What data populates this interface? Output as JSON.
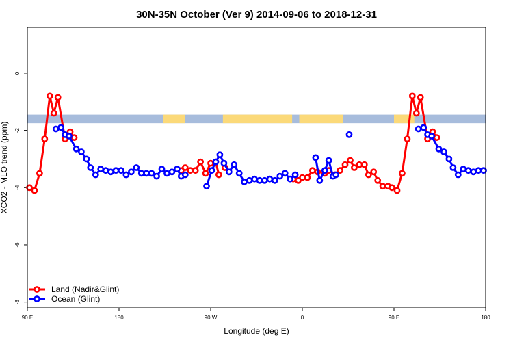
{
  "chart_data": {
    "type": "line",
    "title": "30N-35N October (Ver 9)   2014-09-06 to 2018-12-31",
    "xlabel": "Longitude (deg E)",
    "ylabel": "XCO2 - MLO trend (ppm)",
    "xlim": [
      90,
      540
    ],
    "ylim": [
      -8.2,
      1.6
    ],
    "x_ticks": [
      {
        "value": 90,
        "label": "90 E"
      },
      {
        "value": 180,
        "label": "180"
      },
      {
        "value": 270,
        "label": "90 W"
      },
      {
        "value": 360,
        "label": "0"
      },
      {
        "value": 450,
        "label": "90 E"
      },
      {
        "value": 540,
        "label": "180"
      }
    ],
    "y_ticks": [
      {
        "value": 0,
        "label": "0"
      },
      {
        "value": -2,
        "label": "-2"
      },
      {
        "value": -4,
        "label": "-4"
      },
      {
        "value": -6,
        "label": "-6"
      },
      {
        "value": -8,
        "label": "-8"
      }
    ],
    "land_mask_band": {
      "y_range": [
        -1.75,
        -1.45
      ],
      "ocean_color": "#a7bcdc",
      "land_color": "#fbd979",
      "land_segments": [
        [
          223,
          245
        ],
        [
          282,
          350
        ],
        [
          357,
          400
        ],
        [
          450,
          470
        ]
      ]
    },
    "legend": {
      "position": "bottom-left"
    },
    "series": [
      {
        "name": "Land (Nadir&Glint)",
        "color": "#ff0000",
        "segments": [
          [
            [
              92,
              -4.0
            ],
            [
              97,
              -4.1
            ],
            [
              102,
              -3.5
            ],
            [
              107,
              -2.3
            ],
            [
              112,
              -0.8
            ],
            [
              116,
              -1.4
            ],
            [
              120,
              -0.85
            ],
            [
              127,
              -2.3
            ],
            [
              132,
              -2.05
            ],
            [
              136,
              -2.25
            ]
          ],
          [
            [
              241,
              -3.4
            ],
            [
              245,
              -3.3
            ],
            [
              250,
              -3.4
            ],
            [
              255,
              -3.4
            ],
            [
              260,
              -3.1
            ],
            [
              265,
              -3.5
            ],
            [
              270,
              -3.15
            ]
          ],
          [
            [
              275,
              -3.1
            ],
            [
              278,
              -3.55
            ]
          ],
          [
            [
              284,
              -3.3
            ]
          ],
          [
            [
              351,
              -3.7
            ],
            [
              356,
              -3.75
            ],
            [
              360,
              -3.65
            ],
            [
              365,
              -3.65
            ],
            [
              370,
              -3.4
            ],
            [
              375,
              -3.45
            ]
          ],
          [
            [
              382,
              -3.5
            ],
            [
              386,
              -3.4
            ]
          ],
          [
            [
              392,
              -3.55
            ],
            [
              397,
              -3.4
            ],
            [
              402,
              -3.2
            ],
            [
              407,
              -3.05
            ],
            [
              411,
              -3.3
            ],
            [
              416,
              -3.2
            ],
            [
              421,
              -3.2
            ],
            [
              425,
              -3.55
            ],
            [
              430,
              -3.45
            ],
            [
              434,
              -3.75
            ],
            [
              439,
              -3.95
            ],
            [
              444,
              -3.95
            ],
            [
              448,
              -4.0
            ],
            [
              453,
              -4.1
            ],
            [
              458,
              -3.5
            ],
            [
              463,
              -2.3
            ],
            [
              468,
              -0.8
            ],
            [
              472,
              -1.4
            ],
            [
              476,
              -0.85
            ],
            [
              483,
              -2.3
            ],
            [
              488,
              -2.05
            ],
            [
              492,
              -2.25
            ]
          ]
        ]
      },
      {
        "name": "Ocean (Glint)",
        "color": "#0000ff",
        "segments": [
          [
            [
              118,
              -1.95
            ],
            [
              123,
              -1.9
            ],
            [
              127,
              -2.15
            ],
            [
              131,
              -2.2
            ],
            [
              138,
              -2.65
            ],
            [
              143,
              -2.75
            ],
            [
              148,
              -3.0
            ],
            [
              152,
              -3.3
            ],
            [
              157,
              -3.55
            ],
            [
              162,
              -3.35
            ],
            [
              167,
              -3.4
            ],
            [
              172,
              -3.45
            ],
            [
              177,
              -3.4
            ],
            [
              182,
              -3.4
            ],
            [
              187,
              -3.55
            ],
            [
              192,
              -3.45
            ],
            [
              197,
              -3.3
            ],
            [
              202,
              -3.5
            ],
            [
              207,
              -3.5
            ],
            [
              212,
              -3.5
            ],
            [
              217,
              -3.6
            ],
            [
              222,
              -3.35
            ],
            [
              227,
              -3.5
            ],
            [
              232,
              -3.45
            ],
            [
              237,
              -3.35
            ],
            [
              241,
              -3.6
            ],
            [
              245,
              -3.55
            ]
          ],
          [
            [
              266,
              -3.95
            ],
            [
              271,
              -3.4
            ],
            [
              275,
              -3.1
            ],
            [
              279,
              -2.85
            ],
            [
              283,
              -3.15
            ],
            [
              288,
              -3.45
            ],
            [
              293,
              -3.2
            ],
            [
              298,
              -3.5
            ],
            [
              303,
              -3.8
            ],
            [
              308,
              -3.75
            ],
            [
              313,
              -3.7
            ],
            [
              318,
              -3.75
            ],
            [
              323,
              -3.75
            ],
            [
              328,
              -3.7
            ],
            [
              333,
              -3.75
            ],
            [
              338,
              -3.6
            ],
            [
              343,
              -3.5
            ],
            [
              348,
              -3.7
            ],
            [
              353,
              -3.55
            ]
          ],
          [
            [
              373,
              -2.95
            ],
            [
              377,
              -3.75
            ],
            [
              382,
              -3.4
            ],
            [
              386,
              -3.05
            ],
            [
              390,
              -3.6
            ],
            [
              393,
              -3.55
            ]
          ],
          [
            [
              406,
              -2.15
            ]
          ],
          [
            [
              474,
              -1.95
            ],
            [
              479,
              -1.9
            ],
            [
              483,
              -2.15
            ],
            [
              487,
              -2.2
            ],
            [
              494,
              -2.65
            ],
            [
              499,
              -2.75
            ],
            [
              504,
              -3.0
            ],
            [
              508,
              -3.3
            ],
            [
              513,
              -3.55
            ],
            [
              518,
              -3.35
            ],
            [
              523,
              -3.4
            ],
            [
              528,
              -3.45
            ],
            [
              533,
              -3.4
            ],
            [
              538,
              -3.4
            ]
          ]
        ]
      }
    ]
  }
}
